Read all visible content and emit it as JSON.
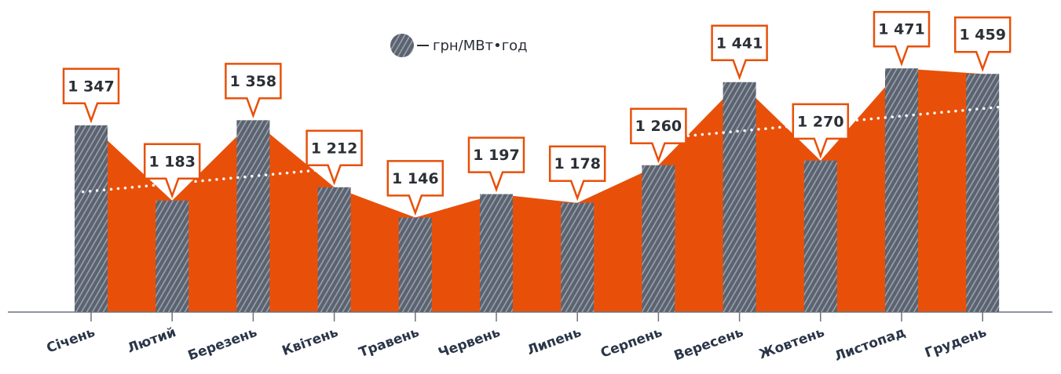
{
  "chart_data": {
    "type": "bar",
    "categories": [
      "Січень",
      "Лютий",
      "Березень",
      "Квітень",
      "Травень",
      "Червень",
      "Липень",
      "Серпень",
      "Вересень",
      "Жовтень",
      "Листопад",
      "Грудень"
    ],
    "series": [
      {
        "name": "грн/МВт•год",
        "color": "#5b6371",
        "values": [
          1347,
          1183,
          1358,
          1212,
          1146,
          1197,
          1178,
          1260,
          1441,
          1270,
          1471,
          1459
        ],
        "value_labels": [
          "1 347",
          "1 183",
          "1 358",
          "1 212",
          "1 146",
          "1 197",
          "1 178",
          "1 260",
          "1 441",
          "1 270",
          "1 471",
          "1 459"
        ]
      }
    ],
    "area_color": "#e8500a",
    "trendline": true,
    "ylim": [
      940,
      1620
    ]
  }
}
